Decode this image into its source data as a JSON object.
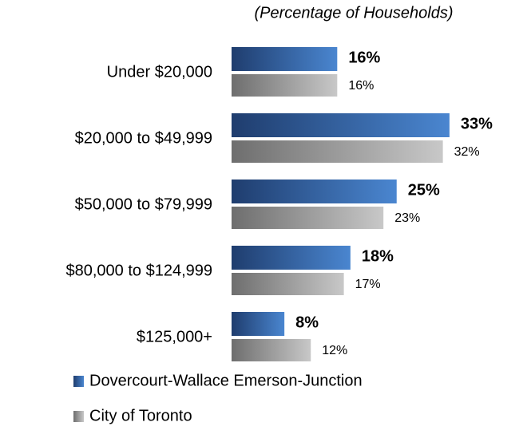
{
  "chart_data": {
    "type": "bar",
    "orientation": "horizontal",
    "title": "(Percentage of Households)",
    "categories": [
      "Under $20,000",
      "$20,000 to $49,999",
      "$50,000 to $79,999",
      "$80,000 to $124,999",
      "$125,000+"
    ],
    "series": [
      {
        "name": "Dovercourt-Wallace Emerson-Junction",
        "color": "#4a86d0",
        "values": [
          16,
          33,
          25,
          18,
          8
        ],
        "value_labels": [
          "16%",
          "33%",
          "25%",
          "18%",
          "8%"
        ]
      },
      {
        "name": "City of Toronto",
        "color": "#c8c8c8",
        "values": [
          16,
          32,
          23,
          17,
          12
        ],
        "value_labels": [
          "16%",
          "32%",
          "23%",
          "17%",
          "12%"
        ]
      }
    ]
  }
}
